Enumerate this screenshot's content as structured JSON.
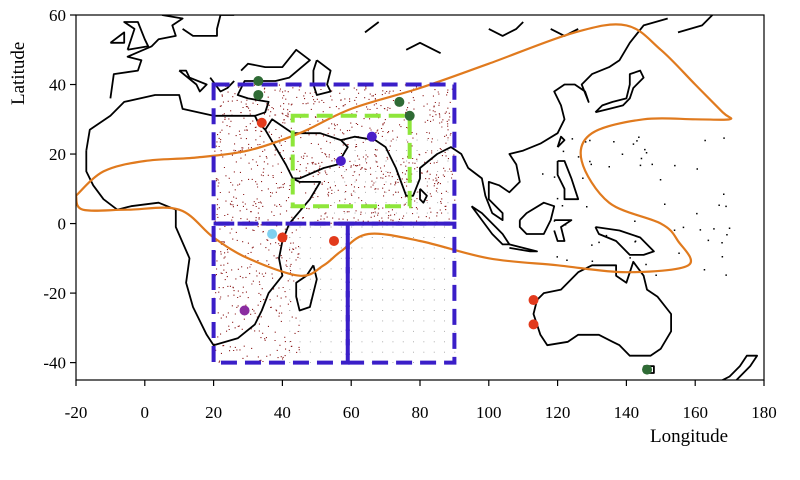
{
  "chart_data": {
    "type": "scatter",
    "xlabel": "Longitude",
    "ylabel": "Latitude",
    "xlim": [
      -20,
      180
    ],
    "ylim": [
      -45,
      60
    ],
    "x_ticks": [
      "-20",
      "0",
      "20",
      "40",
      "60",
      "80",
      "100",
      "120",
      "140",
      "160",
      "180"
    ],
    "y_ticks": [
      "-40",
      "-20",
      "0",
      "20",
      "40",
      "60"
    ],
    "grid": false,
    "colors": {
      "coast": "#000000",
      "region_boxes": "#3a1ec8",
      "inner_box": "#8ee63a",
      "contour": "#e07a1e",
      "density_dots": "#8b1a1a"
    },
    "boxes": [
      {
        "style": "dashed",
        "color": "#3a1ec8",
        "lon": [
          20,
          90
        ],
        "lat": [
          0,
          40
        ]
      },
      {
        "style": "dashed",
        "color": "#3a1ec8",
        "lon": [
          20,
          59
        ],
        "lat": [
          -40,
          0
        ]
      },
      {
        "style": "dashed",
        "color": "#3a1ec8",
        "lon": [
          59,
          90
        ],
        "lat": [
          -40,
          0
        ]
      },
      {
        "style": "dashed",
        "color": "#8ee63a",
        "lon": [
          43,
          77
        ],
        "lat": [
          5,
          31
        ]
      }
    ],
    "contour_path": [
      [
        -20,
        8
      ],
      [
        -12,
        15
      ],
      [
        0,
        18
      ],
      [
        15,
        19
      ],
      [
        30,
        21
      ],
      [
        45,
        26
      ],
      [
        60,
        33
      ],
      [
        80,
        39
      ],
      [
        100,
        46
      ],
      [
        125,
        55
      ],
      [
        140,
        57
      ],
      [
        150,
        50
      ],
      [
        160,
        40
      ],
      [
        168,
        32
      ],
      [
        170,
        30
      ],
      [
        160,
        30
      ],
      [
        145,
        30
      ],
      [
        130,
        26
      ],
      [
        127,
        18
      ],
      [
        135,
        6
      ],
      [
        150,
        0
      ],
      [
        155,
        -5
      ],
      [
        158,
        -12
      ],
      [
        140,
        -14
      ],
      [
        120,
        -12
      ],
      [
        100,
        -10
      ],
      [
        80,
        -5
      ],
      [
        65,
        -3
      ],
      [
        57,
        -8
      ],
      [
        52,
        -12
      ],
      [
        45,
        -15
      ],
      [
        30,
        -10
      ],
      [
        20,
        -4
      ],
      [
        10,
        4
      ],
      [
        -5,
        4
      ],
      [
        -18,
        4
      ],
      [
        -20,
        8
      ]
    ],
    "stations": [
      {
        "lon": 33,
        "lat": 41,
        "color": "#2f6b35"
      },
      {
        "lon": 33,
        "lat": 37,
        "color": "#2f6b35"
      },
      {
        "lon": 74,
        "lat": 35,
        "color": "#2f6b35"
      },
      {
        "lon": 77,
        "lat": 31,
        "color": "#2f6b35"
      },
      {
        "lon": 146,
        "lat": -42,
        "color": "#2f6b35"
      },
      {
        "lon": 34,
        "lat": 29,
        "color": "#e23a1c"
      },
      {
        "lon": 40,
        "lat": -4,
        "color": "#e23a1c"
      },
      {
        "lon": 55,
        "lat": -5,
        "color": "#e23a1c"
      },
      {
        "lon": 113,
        "lat": -22,
        "color": "#e23a1c"
      },
      {
        "lon": 113,
        "lat": -29,
        "color": "#e23a1c"
      },
      {
        "lon": 37,
        "lat": -3,
        "color": "#7fd0f0"
      },
      {
        "lon": 57,
        "lat": 18,
        "color": "#4a1ec8"
      },
      {
        "lon": 66,
        "lat": 25,
        "color": "#4a1ec8"
      },
      {
        "lon": 29,
        "lat": -25,
        "color": "#8a2ca0"
      }
    ],
    "density_regions": [
      {
        "lon": [
          20,
          90
        ],
        "lat": [
          0,
          40
        ],
        "count": 900
      },
      {
        "lon": [
          20,
          45
        ],
        "lat": [
          -40,
          0
        ],
        "count": 260
      }
    ],
    "ocean_grid": [
      {
        "lon": [
          42,
          90
        ],
        "lat": [
          -40,
          0
        ],
        "step": 3
      },
      {
        "lon": [
          55,
          90
        ],
        "lat": [
          0,
          25
        ],
        "step": 3
      }
    ],
    "coastlines": [
      [
        [
          -17,
          21
        ],
        [
          -16,
          27
        ],
        [
          -10,
          31
        ],
        [
          -6,
          35
        ],
        [
          3,
          37
        ],
        [
          10,
          37
        ],
        [
          11,
          33
        ],
        [
          20,
          31
        ],
        [
          30,
          31
        ],
        [
          32,
          31
        ],
        [
          35,
          32
        ],
        [
          36,
          35
        ],
        [
          30,
          36
        ],
        [
          27,
          37
        ],
        [
          29,
          41
        ],
        [
          38,
          41
        ],
        [
          42,
          42
        ],
        [
          48,
          47
        ],
        [
          44,
          50
        ],
        [
          40,
          45
        ],
        [
          35,
          45
        ],
        [
          30,
          46
        ],
        [
          28,
          44
        ]
      ],
      [
        [
          32,
          31
        ],
        [
          33,
          29
        ],
        [
          35,
          27
        ],
        [
          38,
          22
        ],
        [
          41,
          17
        ],
        [
          43,
          13
        ],
        [
          45,
          12
        ],
        [
          51,
          12
        ],
        [
          48,
          7
        ],
        [
          42,
          0
        ],
        [
          40,
          -5
        ],
        [
          39,
          -10
        ],
        [
          40,
          -15
        ],
        [
          36,
          -20
        ],
        [
          34,
          -25
        ],
        [
          32,
          -29
        ],
        [
          27,
          -33
        ],
        [
          20,
          -35
        ],
        [
          18,
          -32
        ],
        [
          14,
          -24
        ],
        [
          12,
          -17
        ],
        [
          13,
          -10
        ],
        [
          9,
          -1
        ],
        [
          9,
          4
        ],
        [
          4,
          6
        ],
        [
          -4,
          5
        ],
        [
          -8,
          4
        ],
        [
          -12,
          7
        ],
        [
          -15,
          11
        ],
        [
          -17,
          15
        ],
        [
          -17,
          21
        ]
      ],
      [
        [
          35,
          27
        ],
        [
          37,
          30
        ],
        [
          43,
          26
        ],
        [
          51,
          26
        ],
        [
          57,
          24
        ],
        [
          59,
          22
        ],
        [
          56,
          17
        ],
        [
          52,
          16
        ],
        [
          45,
          13
        ],
        [
          43,
          13
        ]
      ],
      [
        [
          57,
          24
        ],
        [
          61,
          25
        ],
        [
          67,
          24
        ],
        [
          70,
          22
        ],
        [
          73,
          16
        ],
        [
          76,
          8
        ],
        [
          78,
          8
        ],
        [
          80,
          13
        ],
        [
          80,
          16
        ],
        [
          85,
          20
        ],
        [
          89,
          22
        ],
        [
          92,
          20
        ],
        [
          94,
          16
        ],
        [
          98,
          13
        ],
        [
          99,
          8
        ],
        [
          101,
          3
        ],
        [
          104,
          1
        ],
        [
          104,
          3
        ],
        [
          100,
          7
        ],
        [
          100,
          12
        ],
        [
          103,
          11
        ],
        [
          106,
          9
        ],
        [
          109,
          12
        ],
        [
          108,
          17
        ],
        [
          106,
          20
        ],
        [
          110,
          21
        ],
        [
          115,
          23
        ],
        [
          120,
          26
        ],
        [
          122,
          30
        ],
        [
          121,
          34
        ],
        [
          119,
          38
        ],
        [
          122,
          40
        ],
        [
          125,
          40
        ],
        [
          128,
          38
        ],
        [
          129,
          35
        ],
        [
          127,
          40
        ],
        [
          130,
          43
        ],
        [
          135,
          45
        ],
        [
          138,
          47
        ],
        [
          141,
          52
        ],
        [
          145,
          57
        ],
        [
          152,
          59
        ]
      ],
      [
        [
          50,
          47
        ],
        [
          54,
          44
        ],
        [
          53,
          40
        ],
        [
          54,
          38
        ],
        [
          50,
          37
        ],
        [
          49,
          40
        ],
        [
          49,
          44
        ],
        [
          50,
          47
        ]
      ],
      [
        [
          131,
          32
        ],
        [
          133,
          34
        ],
        [
          136,
          35
        ],
        [
          140,
          36
        ],
        [
          141,
          40
        ],
        [
          141,
          43
        ],
        [
          144,
          44
        ],
        [
          145,
          42
        ],
        [
          142,
          39
        ],
        [
          141,
          36
        ],
        [
          139,
          34
        ],
        [
          135,
          33
        ],
        [
          131,
          32
        ]
      ],
      [
        [
          95,
          5
        ],
        [
          98,
          3
        ],
        [
          102,
          -1
        ],
        [
          104,
          -3
        ],
        [
          106,
          -6
        ],
        [
          104,
          -6
        ],
        [
          101,
          -3
        ],
        [
          98,
          1
        ],
        [
          95,
          5
        ]
      ],
      [
        [
          106,
          -6
        ],
        [
          110,
          -7
        ],
        [
          114,
          -8
        ],
        [
          112,
          -8
        ],
        [
          106,
          -7
        ]
      ],
      [
        [
          109,
          1
        ],
        [
          111,
          3
        ],
        [
          116,
          6
        ],
        [
          119,
          5
        ],
        [
          118,
          1
        ],
        [
          116,
          -3
        ],
        [
          111,
          -3
        ],
        [
          109,
          -1
        ],
        [
          109,
          1
        ]
      ],
      [
        [
          119,
          1
        ],
        [
          124,
          1
        ],
        [
          121,
          -1
        ],
        [
          122,
          -5
        ],
        [
          120,
          -5
        ],
        [
          119,
          -2
        ]
      ],
      [
        [
          131,
          -1
        ],
        [
          138,
          -2
        ],
        [
          144,
          -4
        ],
        [
          148,
          -8
        ],
        [
          145,
          -9
        ],
        [
          141,
          -9
        ],
        [
          137,
          -5
        ],
        [
          132,
          -3
        ],
        [
          131,
          -1
        ]
      ],
      [
        [
          114,
          -22
        ],
        [
          116,
          -20
        ],
        [
          121,
          -19
        ],
        [
          126,
          -14
        ],
        [
          130,
          -12
        ],
        [
          134,
          -12
        ],
        [
          137,
          -12
        ],
        [
          137,
          -15
        ],
        [
          140,
          -17
        ],
        [
          142,
          -11
        ],
        [
          145,
          -15
        ],
        [
          146,
          -19
        ],
        [
          149,
          -21
        ],
        [
          153,
          -26
        ],
        [
          153,
          -31
        ],
        [
          150,
          -36
        ],
        [
          147,
          -38
        ],
        [
          141,
          -38
        ],
        [
          138,
          -35
        ],
        [
          136,
          -34
        ],
        [
          132,
          -32
        ],
        [
          126,
          -32
        ],
        [
          123,
          -34
        ],
        [
          117,
          -35
        ],
        [
          115,
          -32
        ],
        [
          113,
          -26
        ],
        [
          114,
          -22
        ]
      ],
      [
        [
          145,
          -41
        ],
        [
          148,
          -41
        ],
        [
          148,
          -43
        ],
        [
          146,
          -43
        ],
        [
          145,
          -41
        ]
      ],
      [
        [
          166,
          -46
        ],
        [
          170,
          -44
        ],
        [
          173,
          -41
        ],
        [
          175,
          -38
        ],
        [
          178,
          -38
        ],
        [
          176,
          -41
        ],
        [
          172,
          -45
        ]
      ],
      [
        [
          49,
          -12
        ],
        [
          50,
          -16
        ],
        [
          48,
          -24
        ],
        [
          45,
          -25
        ],
        [
          44,
          -21
        ],
        [
          44,
          -17
        ],
        [
          47,
          -15
        ],
        [
          49,
          -12
        ]
      ],
      [
        [
          80,
          10
        ],
        [
          82,
          8
        ],
        [
          81,
          6
        ],
        [
          80,
          7
        ],
        [
          80,
          10
        ]
      ],
      [
        [
          -10,
          36
        ],
        [
          -9,
          43
        ],
        [
          -2,
          44
        ],
        [
          -1,
          47
        ],
        [
          -5,
          48
        ],
        [
          2,
          51
        ],
        [
          4,
          53
        ],
        [
          9,
          54
        ],
        [
          8,
          57
        ],
        [
          11,
          59
        ],
        [
          5,
          60
        ]
      ],
      [
        [
          10,
          44
        ],
        [
          15,
          40
        ],
        [
          16,
          38
        ],
        [
          18,
          40
        ],
        [
          13,
          42
        ],
        [
          12,
          44
        ],
        [
          10,
          44
        ]
      ],
      [
        [
          19,
          42
        ],
        [
          22,
          38
        ],
        [
          24,
          39
        ],
        [
          26,
          41
        ]
      ],
      [
        [
          -5,
          50
        ],
        [
          -3,
          56
        ],
        [
          -6,
          58
        ],
        [
          -2,
          58
        ],
        [
          0,
          53
        ],
        [
          1,
          51
        ],
        [
          -5,
          50
        ]
      ],
      [
        [
          -10,
          52
        ],
        [
          -6,
          55
        ],
        [
          -6,
          52
        ],
        [
          -10,
          52
        ]
      ],
      [
        [
          26,
          60
        ],
        [
          22,
          60
        ],
        [
          21,
          56
        ],
        [
          21,
          54
        ],
        [
          14,
          54
        ],
        [
          11,
          56
        ]
      ],
      [
        [
          120,
          22
        ],
        [
          121,
          25
        ],
        [
          122,
          24
        ],
        [
          120,
          22
        ]
      ],
      [
        [
          120,
          18
        ],
        [
          122,
          18
        ],
        [
          124,
          13
        ],
        [
          125,
          10
        ],
        [
          126,
          7
        ],
        [
          122,
          7
        ],
        [
          122,
          10
        ],
        [
          120,
          14
        ],
        [
          120,
          18
        ]
      ],
      [
        [
          64,
          55
        ],
        [
          68,
          58
        ]
      ],
      [
        [
          76,
          50
        ],
        [
          80,
          52
        ],
        [
          86,
          49
        ]
      ],
      [
        [
          100,
          56
        ],
        [
          104,
          54
        ],
        [
          108,
          56
        ],
        [
          110,
          58
        ]
      ],
      [
        [
          118,
          56
        ],
        [
          122,
          54
        ],
        [
          126,
          56
        ]
      ],
      [
        [
          155,
          55
        ],
        [
          162,
          57
        ],
        [
          165,
          60
        ]
      ]
    ]
  }
}
